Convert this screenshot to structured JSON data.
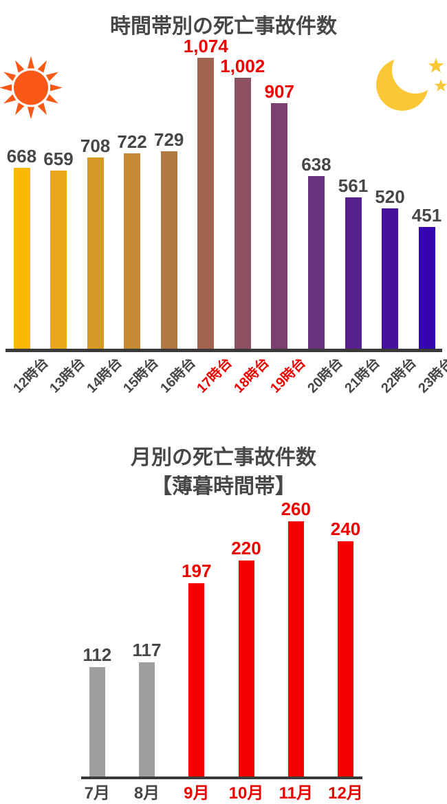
{
  "colors": {
    "background": "#ffffff",
    "text_dark": "#474747",
    "label_red": "#ee0000",
    "axis": "#3a3a3a",
    "sun": "#f95817",
    "moon": "#fcc737",
    "gray_bar": "#9e9e9e",
    "red_bar": "#f60000"
  },
  "icons": {
    "sun": "sun-icon (daytime, left of hourly chart)",
    "moon": "moon-with-stars-icon (night, right of hourly chart)"
  },
  "chart_data": [
    {
      "type": "bar",
      "title": "時間帯別の死亡事故件数",
      "categories": [
        "12時台",
        "13時台",
        "14時台",
        "15時台",
        "16時台",
        "17時台",
        "18時台",
        "19時台",
        "20時台",
        "21時台",
        "22時台",
        "23時台"
      ],
      "values": [
        668,
        659,
        708,
        722,
        729,
        1074,
        1002,
        907,
        638,
        561,
        520,
        451
      ],
      "value_labels": [
        "668",
        "659",
        "708",
        "722",
        "729",
        "1,074",
        "1,002",
        "907",
        "638",
        "561",
        "520",
        "451"
      ],
      "bar_colors": [
        "#fcb808",
        "#e9a81a",
        "#d79a25",
        "#c58a33",
        "#b07943",
        "#a06450",
        "#8d5262",
        "#7a4170",
        "#6a327f",
        "#57218d",
        "#46129d",
        "#3505b0"
      ],
      "highlighted": [
        false,
        false,
        false,
        false,
        false,
        true,
        true,
        true,
        false,
        false,
        false,
        false
      ],
      "highlight_note": "17時台〜19時台 labels and tick text in red",
      "xlabel": "",
      "ylabel": "",
      "ylim": [
        0,
        1074
      ],
      "grid": false,
      "legend": "none",
      "value_label_position": "above bars",
      "tick_label_rotation_deg": -45
    },
    {
      "type": "bar",
      "title": "月別の死亡事故件数【薄暮時間帯】",
      "title_lines": [
        "月別の死亡事故件数",
        "【薄暮時間帯】"
      ],
      "categories": [
        "7月",
        "8月",
        "9月",
        "10月",
        "11月",
        "12月"
      ],
      "values": [
        112,
        117,
        197,
        220,
        260,
        240
      ],
      "value_labels": [
        "112",
        "117",
        "197",
        "220",
        "260",
        "240"
      ],
      "bar_colors": [
        "#9e9e9e",
        "#9e9e9e",
        "#f60000",
        "#f60000",
        "#f60000",
        "#f60000"
      ],
      "highlighted": [
        false,
        false,
        true,
        true,
        true,
        true
      ],
      "highlight_note": "9月〜12月 bars, value labels and tick text in red",
      "xlabel": "",
      "ylabel": "",
      "ylim": [
        0,
        260
      ],
      "grid": false,
      "legend": "none",
      "value_label_position": "above bars",
      "tick_label_rotation_deg": 0
    }
  ]
}
